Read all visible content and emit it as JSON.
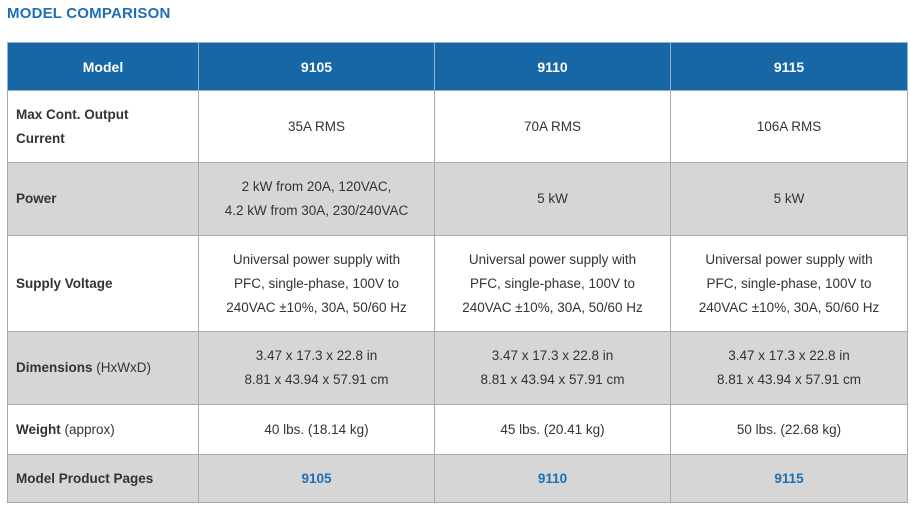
{
  "title": "MODEL COMPARISON",
  "colors": {
    "title": "#1e6fb5",
    "header_bg": "#1767a7",
    "shaded_row": "#d6d6d6",
    "link": "#1e6fb5"
  },
  "headers": [
    "Model",
    "9105",
    "9110",
    "9115"
  ],
  "rows": [
    {
      "label": "Max Cont. Output Current",
      "label_note": "",
      "values": [
        [
          "35A RMS"
        ],
        [
          "70A RMS"
        ],
        [
          "106A RMS"
        ]
      ]
    },
    {
      "label": "Power",
      "label_note": "",
      "values": [
        [
          "2 kW from 20A, 120VAC,",
          "4.2 kW from 30A, 230/240VAC"
        ],
        [
          "5 kW"
        ],
        [
          "5 kW"
        ]
      ]
    },
    {
      "label": "Supply Voltage",
      "label_note": "",
      "values": [
        [
          "Universal power supply with",
          "PFC, single-phase, 100V to",
          "240VAC ±10%, 30A, 50/60 Hz"
        ],
        [
          "Universal power supply with",
          "PFC, single-phase, 100V to",
          "240VAC ±10%, 30A, 50/60 Hz"
        ],
        [
          "Universal power supply with",
          "PFC, single-phase, 100V to",
          "240VAC ±10%, 30A, 50/60 Hz"
        ]
      ]
    },
    {
      "label": "Dimensions",
      "label_note": "(HxWxD)",
      "values": [
        [
          "3.47 x 17.3 x 22.8 in",
          "8.81 x 43.94 x 57.91 cm"
        ],
        [
          "3.47 x 17.3 x 22.8 in",
          "8.81 x 43.94 x 57.91 cm"
        ],
        [
          "3.47 x 17.3 x 22.8 in",
          "8.81 x 43.94 x 57.91 cm"
        ]
      ]
    },
    {
      "label": "Weight",
      "label_note": "(approx)",
      "values": [
        [
          "40 lbs. (18.14 kg)"
        ],
        [
          "45 lbs. (20.41 kg)"
        ],
        [
          "50 lbs. (22.68 kg)"
        ]
      ]
    }
  ],
  "product_pages": {
    "label": "Model Product Pages",
    "links": [
      "9105",
      "9110",
      "9115"
    ]
  }
}
